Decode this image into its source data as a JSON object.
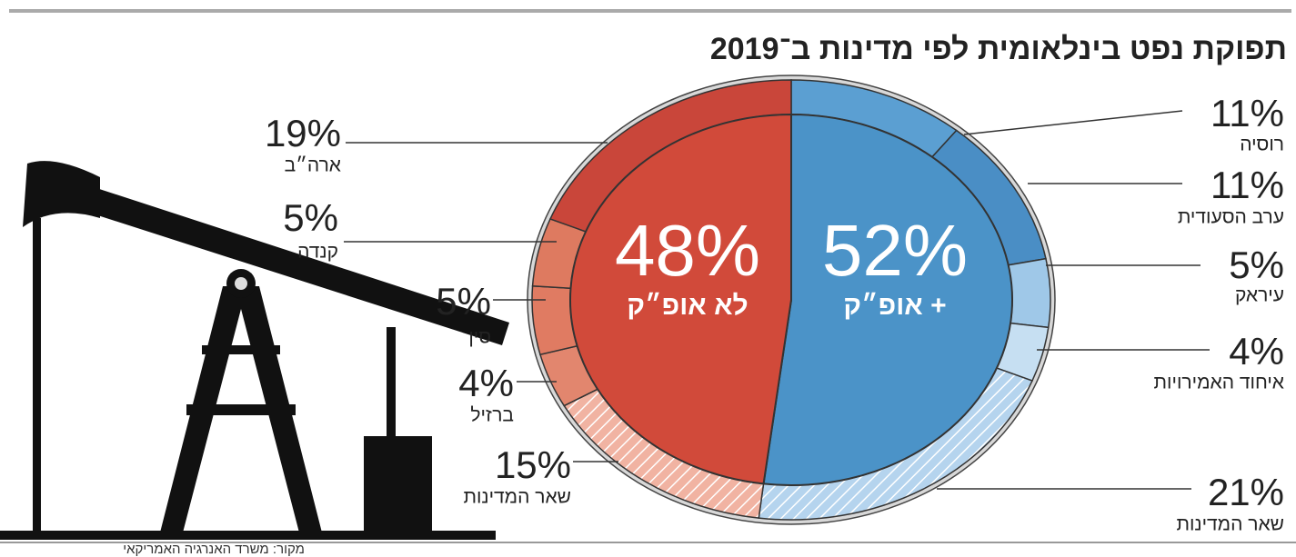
{
  "chart_data": {
    "type": "pie",
    "title": "תפוקת נפט בינלאומית לפי מדינות ב־2019",
    "source": "מקור: משרד האנרגיה האמריקאי",
    "inner": {
      "categories": [
        "אופ״ק +",
        "לא אופ״ק"
      ],
      "values": [
        52,
        48
      ],
      "value_labels": [
        "52%",
        "48%"
      ],
      "colors": [
        "#4b93c8",
        "#d14a3a"
      ]
    },
    "outer": {
      "categories": [
        "רוסיה",
        "ערב הסעודית",
        "עיראק",
        "איחוד האמירויות",
        "שאר המדינות",
        "שאר המדינות",
        "ברזיל",
        "סין",
        "קנדה",
        "ארה״ב"
      ],
      "values": [
        11,
        11,
        5,
        4,
        21,
        15,
        4,
        5,
        5,
        19
      ],
      "value_labels": [
        "11%",
        "11%",
        "5%",
        "4%",
        "21%",
        "15%",
        "4%",
        "5%",
        "5%",
        "19%"
      ],
      "colors": [
        "#5b9fd2",
        "#4a8ec5",
        "#9fc8e8",
        "#c6dff2",
        "#b5d4ee",
        "#f1b3a2",
        "#e2866e",
        "#e07b62",
        "#de7a60",
        "#c9463a"
      ],
      "hatched": [
        false,
        false,
        false,
        false,
        true,
        true,
        false,
        false,
        false,
        false
      ]
    }
  }
}
